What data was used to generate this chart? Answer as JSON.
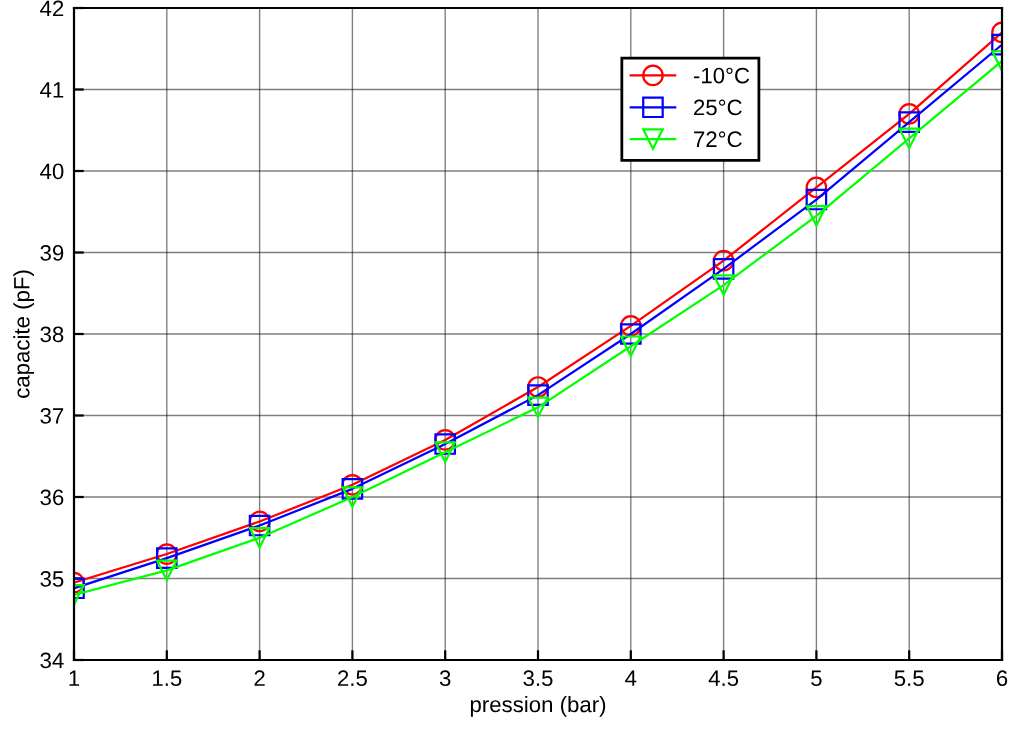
{
  "chart_data": {
    "type": "line",
    "xlabel": "pression (bar)",
    "ylabel": "capacite (pF)",
    "x": [
      1,
      1.5,
      2,
      2.5,
      3,
      3.5,
      4,
      4.5,
      5,
      5.5,
      6
    ],
    "series": [
      {
        "name": "-10°C",
        "color": "#ff0000",
        "marker": "circle",
        "values": [
          34.95,
          35.3,
          35.7,
          36.15,
          36.7,
          37.35,
          38.1,
          38.9,
          39.8,
          40.7,
          41.7
        ]
      },
      {
        "name": "25°C",
        "color": "#0000ff",
        "marker": "square",
        "values": [
          34.88,
          35.25,
          35.65,
          36.1,
          36.65,
          37.25,
          38.0,
          38.8,
          39.65,
          40.6,
          41.55
        ]
      },
      {
        "name": "72°C",
        "color": "#00ff00",
        "marker": "triangle",
        "values": [
          34.8,
          35.1,
          35.5,
          36.0,
          36.55,
          37.1,
          37.85,
          38.6,
          39.45,
          40.4,
          41.35
        ]
      }
    ],
    "xlim": [
      1,
      6
    ],
    "xticks": [
      1,
      1.5,
      2,
      2.5,
      3,
      3.5,
      4,
      4.5,
      5,
      5.5,
      6
    ],
    "ylim": [
      34,
      42
    ],
    "yticks": [
      34,
      35,
      36,
      37,
      38,
      39,
      40,
      41,
      42
    ],
    "grid": true,
    "legend": "top right",
    "line_style": "solid"
  }
}
